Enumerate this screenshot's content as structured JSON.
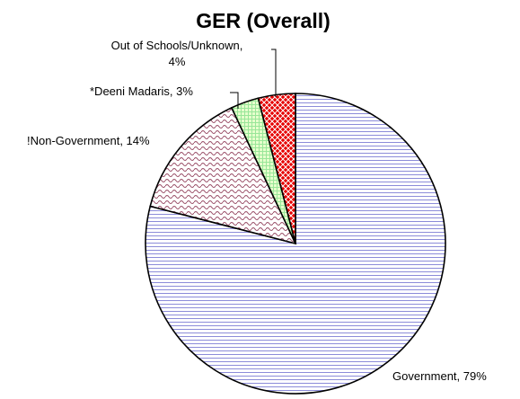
{
  "chart_data": {
    "type": "pie",
    "title": "GER (Overall)",
    "slices": [
      {
        "label": "Government",
        "value": 79,
        "display": "Government, 79%",
        "pattern": "horizontal-lines",
        "color": "#8c8cd9",
        "background": "#ffffff"
      },
      {
        "label": "!Non-Government",
        "value": 14,
        "display": "!Non-Government, 14%",
        "pattern": "wave",
        "color": "#994d66",
        "background": "#ffffff"
      },
      {
        "label": "*Deeni Madaris",
        "value": 3,
        "display": "*Deeni Madaris, 3%",
        "pattern": "grid",
        "color": "#99e699",
        "background": "#e6ffcc"
      },
      {
        "label": "Out of Schools/Unknown",
        "value": 4,
        "display_lines": [
          "Out of Schools/Unknown,",
          "4%"
        ],
        "pattern": "diamond",
        "color": "#ffffff",
        "background": "#e60000"
      }
    ],
    "start": "12 o'clock",
    "direction": "clockwise",
    "legend": "none",
    "label_style": "category, percent"
  }
}
